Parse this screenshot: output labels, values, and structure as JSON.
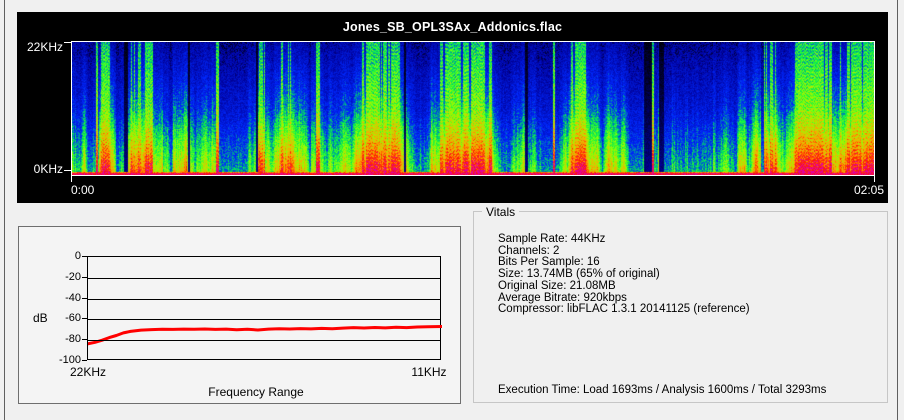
{
  "window": {
    "background": "#f0f0f0",
    "edge_color": "#5f5f5f"
  },
  "spectrogram_panel": {
    "title": "Jones_SB_OPL3SAx_Addonics.flac",
    "background": "#000000",
    "y_axis": {
      "top_label": "22KHz",
      "bottom_label": "0KHz"
    },
    "x_axis": {
      "start_label": "0:00",
      "end_label": "02:05"
    }
  },
  "frequency_chart": {
    "ylabel": "dB",
    "xlabel": "Frequency Range",
    "x_start_label": "22KHz",
    "x_end_label": "11KHz",
    "y_ticks": [
      "0",
      "-20",
      "-40",
      "-60",
      "-80",
      "-100"
    ],
    "line_color": "#ff0000"
  },
  "vitals": {
    "legend": "Vitals",
    "lines": [
      "Sample Rate: 44KHz",
      "Channels: 2",
      "Bits Per Sample: 16",
      "Size: 13.74MB (65% of original)",
      "Original Size: 21.08MB",
      "Average Bitrate: 920kbps",
      "Compressor: libFLAC 1.3.1 20141125 (reference)"
    ],
    "execution_time": "Execution Time: Load 1693ms / Analysis 1600ms / Total 3293ms"
  },
  "chart_data": [
    {
      "type": "heatmap",
      "subtype": "spectrogram",
      "title": "Jones_SB_OPL3SAx_Addonics.flac",
      "y_tick_labels": [
        "22KHz",
        "0KHz"
      ],
      "x_tick_labels": [
        "0:00",
        "02:05"
      ],
      "duration": "02:05",
      "description": "Audio spectrogram: deep blue background with dense vertical green/cyan streaks in the upper band, transitioning to green/yellow/orange energy in the lower third, hot red/magenta line at 0KHz; a few dark silent gaps (most prominent around 72% of the duration).",
      "palette": [
        "#000000",
        "#0000ff",
        "#00ffff",
        "#00ff00",
        "#ffff00",
        "#ff8000",
        "#ff0000",
        "#ff00aa"
      ]
    },
    {
      "type": "line",
      "title": "",
      "xlabel": "Frequency Range",
      "ylabel": "dB",
      "x_tick_labels": [
        "22KHz",
        "11KHz"
      ],
      "x_axis_note": "frequency decreases left to right, 22KHz to 11KHz",
      "ylim": [
        -100,
        0
      ],
      "y_ticks": [
        0,
        -20,
        -40,
        -60,
        -80,
        -100
      ],
      "grid": true,
      "series": [
        {
          "name": "spectral-average",
          "color": "#ff0000",
          "x_percent": [
            0,
            2,
            4,
            6,
            8,
            10,
            12,
            15,
            18,
            21,
            24,
            27,
            30,
            33,
            36,
            39,
            42,
            45,
            48,
            51,
            54,
            57,
            60,
            63,
            66,
            69,
            72,
            75,
            78,
            81,
            84,
            87,
            90,
            93,
            96,
            100
          ],
          "values_db": [
            -83.5,
            -82,
            -80,
            -77.5,
            -75.5,
            -73,
            -71.5,
            -70.3,
            -69.8,
            -69.4,
            -69.6,
            -69.3,
            -69.5,
            -69.2,
            -69.6,
            -69.3,
            -70,
            -69.4,
            -70.2,
            -69.3,
            -69,
            -69.2,
            -68.8,
            -69.1,
            -68.7,
            -68.9,
            -68.4,
            -67.9,
            -68.3,
            -67.8,
            -68.2,
            -67.6,
            -67.9,
            -67.3,
            -67.1,
            -66.8
          ]
        }
      ]
    }
  ]
}
